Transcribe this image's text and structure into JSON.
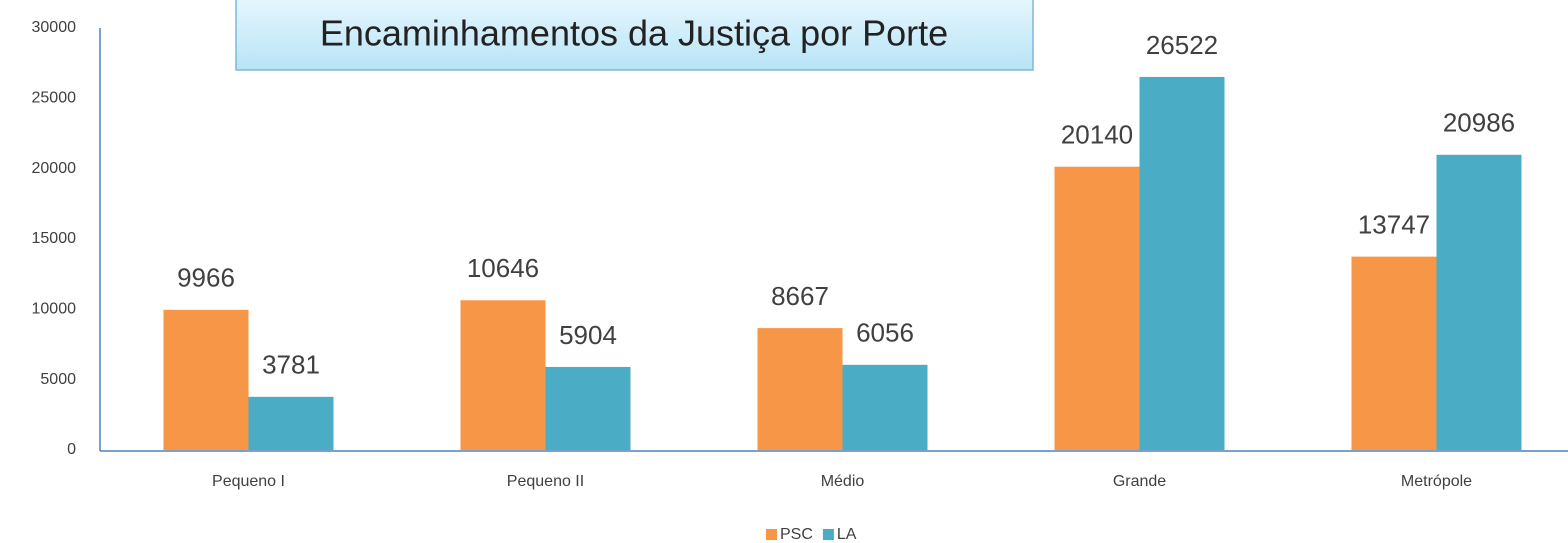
{
  "chart_data": {
    "type": "bar",
    "title": "Encaminhamentos da Justiça por Porte",
    "categories": [
      "Pequeno I",
      "Pequeno II",
      "Médio",
      "Grande",
      "Metrópole"
    ],
    "series": [
      {
        "name": "PSC",
        "color": "#f79646",
        "values": [
          9966,
          10646,
          8667,
          20140,
          13747
        ]
      },
      {
        "name": "LA",
        "color": "#4bacc6",
        "values": [
          3781,
          5904,
          6056,
          26522,
          20986
        ]
      }
    ],
    "ylim": [
      0,
      30000
    ],
    "yticks": [
      0,
      5000,
      10000,
      15000,
      20000,
      25000,
      30000
    ],
    "grid": false,
    "legend": "bottom"
  }
}
